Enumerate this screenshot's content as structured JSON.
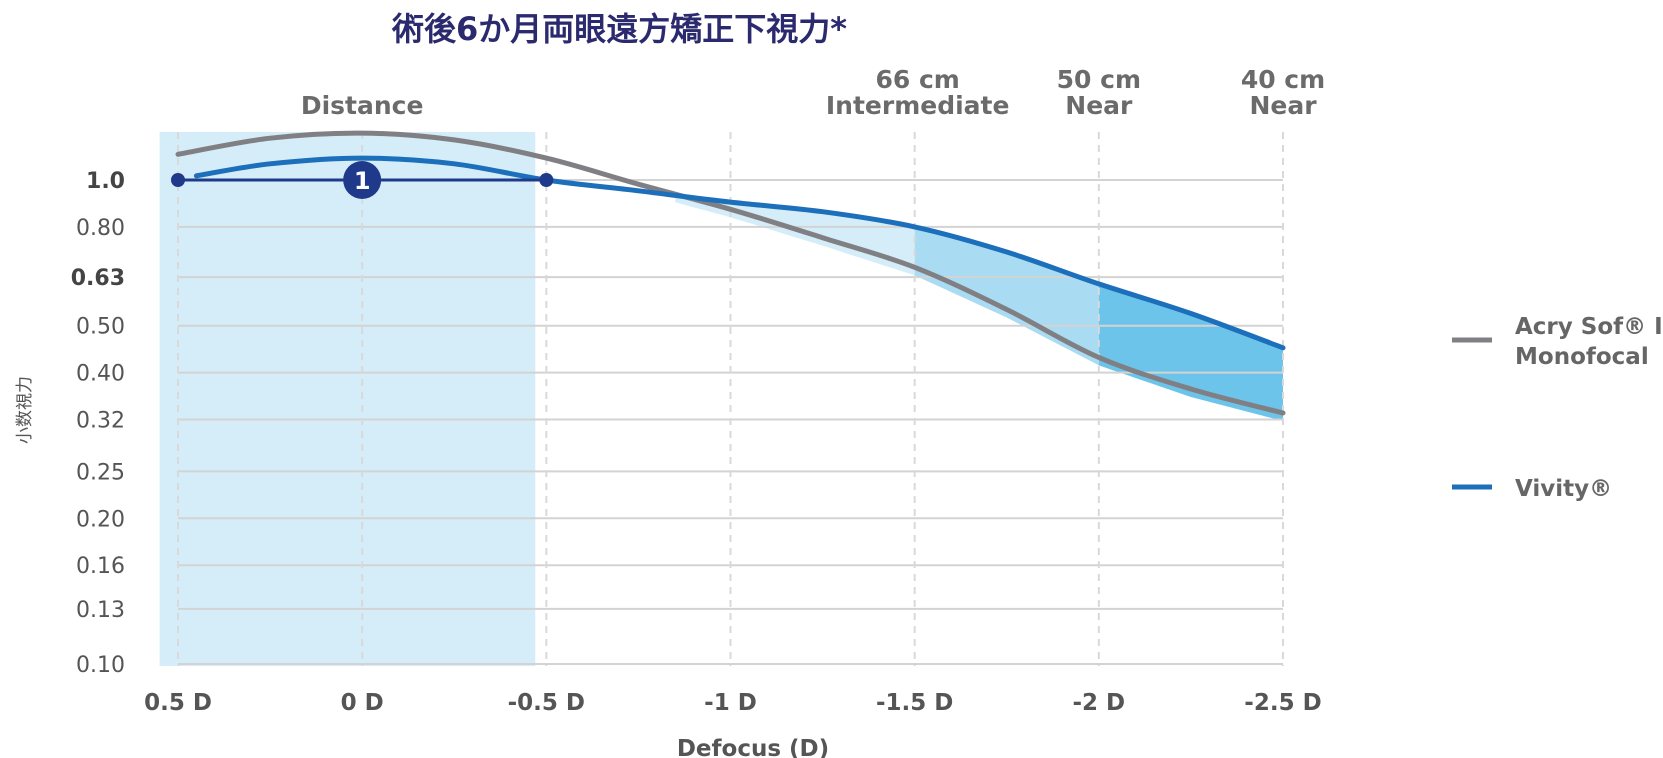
{
  "chart_data": {
    "type": "line",
    "title": "術後6か月両眼遠方矯正下視力*",
    "xlabel": "Defocus (D)",
    "ylabel": "小数視力",
    "x_ticks": [
      0.5,
      0,
      -0.5,
      -1,
      -1.5,
      -2,
      -2.5
    ],
    "x_tick_labels": [
      "0.5 D",
      "0 D",
      "-0.5 D",
      "-1 D",
      "-1.5 D",
      "-2 D",
      "-2.5 D"
    ],
    "xlim": [
      0.5,
      -2.5
    ],
    "y_ticks": [
      1.0,
      0.8,
      0.63,
      0.5,
      0.4,
      0.32,
      0.25,
      0.2,
      0.16,
      0.13,
      0.1
    ],
    "y_tick_labels": [
      "1.0",
      "0.80",
      "0.63",
      "0.50",
      "0.40",
      "0.32",
      "0.25",
      "0.20",
      "0.16",
      "0.13",
      "0.10"
    ],
    "y_bold_ticks": [
      "1.0",
      "0.63"
    ],
    "y_scale": "log",
    "grid": true,
    "legend_position": "right",
    "distance_labels": [
      {
        "x": 0,
        "lines": [
          "Distance"
        ]
      },
      {
        "x": -1.5,
        "lines": [
          "66 cm",
          "Intermediate"
        ]
      },
      {
        "x": -2,
        "lines": [
          "50 cm",
          "Near"
        ]
      },
      {
        "x": -2.5,
        "lines": [
          "40 cm",
          "Near"
        ]
      }
    ],
    "annotation": {
      "label": "1",
      "from_x": 0.5,
      "to_x": -0.5,
      "y": 1.0,
      "badge_x": 0
    },
    "series": [
      {
        "name": "Acry Sof® IQ Monofocal",
        "name_lines": [
          "Acry Sof® IQ",
          "Monofocal"
        ],
        "color": "#808084",
        "x": [
          0.5,
          0.25,
          0,
          -0.25,
          -0.5,
          -0.75,
          -1,
          -1.25,
          -1.5,
          -1.75,
          -2,
          -2.25,
          -2.5
        ],
        "y": [
          1.13,
          1.22,
          1.25,
          1.21,
          1.11,
          0.98,
          0.87,
          0.76,
          0.66,
          0.54,
          0.43,
          0.37,
          0.33
        ]
      },
      {
        "name": "Vivity®",
        "name_lines": [
          "Vivity®"
        ],
        "color": "#1c6fba",
        "x": [
          0.45,
          0.25,
          0,
          -0.25,
          -0.5,
          -0.75,
          -1,
          -1.25,
          -1.5,
          -1.75,
          -2,
          -2.25,
          -2.5
        ],
        "y": [
          1.02,
          1.08,
          1.11,
          1.08,
          1.0,
          0.95,
          0.9,
          0.86,
          0.8,
          0.71,
          0.61,
          0.53,
          0.45
        ]
      }
    ],
    "shaded_regions": [
      {
        "x_from": 0.55,
        "x_to": -0.47,
        "color": "#d4edf8"
      },
      {
        "x_from": -0.85,
        "x_to": -1.5,
        "color": "#d4edf8"
      },
      {
        "x_from": -1.5,
        "x_to": -2,
        "color": "#a9dbf2"
      },
      {
        "x_from": -2,
        "x_to": -2.5,
        "color": "#6cc4ea"
      }
    ]
  }
}
